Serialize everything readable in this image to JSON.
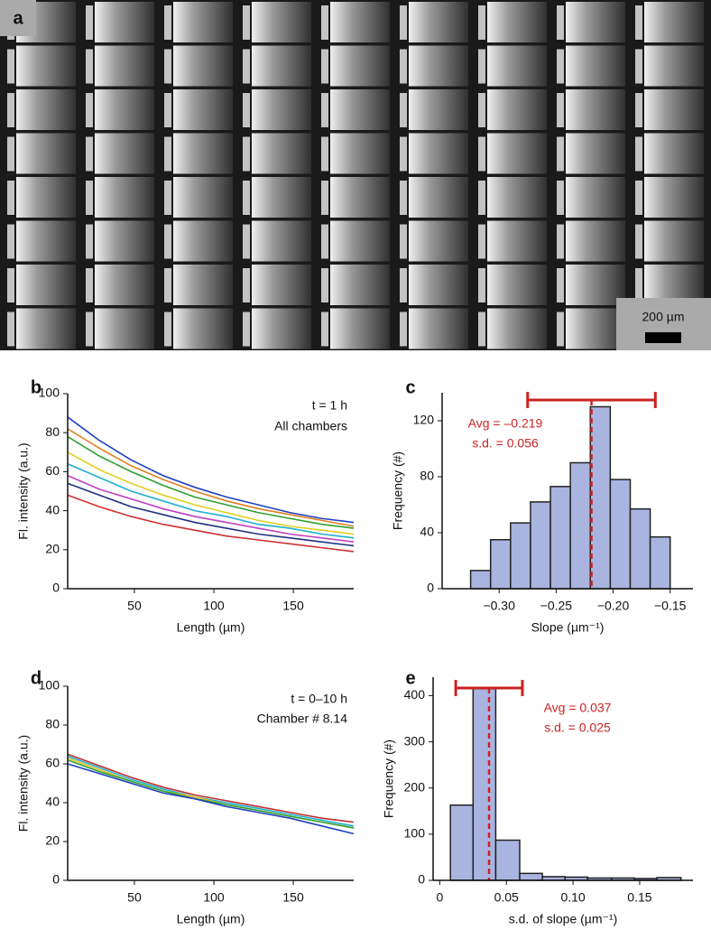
{
  "image": {
    "panel_label": "a",
    "scale_bar": "200 µm"
  },
  "chart_data": [
    {
      "type": "line",
      "panel_label": "b",
      "xlabel": "Length (µm)",
      "ylabel": "Fl. intensity (a.u.)",
      "annotations": [
        "t = 1 h",
        "All chambers"
      ],
      "x": [
        8,
        28,
        48,
        68,
        88,
        108,
        128,
        148,
        168,
        188
      ],
      "series": [
        {
          "color": "#2040c0",
          "values": [
            88,
            76,
            66,
            58,
            52,
            47,
            43,
            39,
            36,
            34
          ]
        },
        {
          "color": "#e08020",
          "values": [
            82,
            72,
            63,
            56,
            50,
            45,
            41,
            38,
            35,
            32
          ]
        },
        {
          "color": "#30a030",
          "values": [
            78,
            68,
            60,
            53,
            47,
            43,
            39,
            36,
            33,
            31
          ]
        },
        {
          "color": "#e0d020",
          "values": [
            70,
            61,
            54,
            48,
            43,
            39,
            35,
            32,
            30,
            28
          ]
        },
        {
          "color": "#20b0d0",
          "values": [
            64,
            57,
            50,
            45,
            40,
            37,
            33,
            31,
            28,
            26
          ]
        },
        {
          "color": "#c040c0",
          "values": [
            58,
            51,
            46,
            41,
            37,
            34,
            31,
            28,
            26,
            24
          ]
        },
        {
          "color": "#203080",
          "values": [
            54,
            48,
            42,
            38,
            34,
            31,
            28,
            26,
            24,
            22
          ]
        },
        {
          "color": "#d03030",
          "values": [
            48,
            42,
            37,
            33,
            30,
            27,
            25,
            23,
            21,
            19
          ]
        }
      ],
      "xlim": [
        8,
        188
      ],
      "xticks": [
        50,
        100,
        150
      ],
      "ylim": [
        0,
        100
      ],
      "yticks": [
        0,
        20,
        40,
        60,
        80,
        100
      ]
    },
    {
      "type": "histogram",
      "panel_label": "c",
      "xlabel": "Slope (µm⁻¹)",
      "ylabel": "Frequency (#)",
      "annotations": [
        "Avg = –0.219",
        "s.d. = 0.056"
      ],
      "mean": -0.219,
      "sd": 0.056,
      "color": "#aab4e0",
      "line_color": "#cc2222",
      "bins": [
        -0.325,
        -0.3075,
        -0.29,
        -0.2725,
        -0.255,
        -0.2375,
        -0.22,
        -0.2025,
        -0.185,
        -0.1675,
        -0.15
      ],
      "counts": [
        13,
        35,
        47,
        62,
        73,
        90,
        130,
        78,
        57,
        37
      ],
      "xlim": [
        -0.35,
        -0.13
      ],
      "xticks": [
        {
          "value": -0.3,
          "label": "−0.30"
        },
        {
          "value": -0.25,
          "label": "−0.25"
        },
        {
          "value": -0.2,
          "label": "−0.20"
        },
        {
          "value": -0.15,
          "label": "−0.15"
        }
      ],
      "ylim": [
        0,
        140
      ],
      "yticks": [
        0,
        40,
        80,
        120
      ]
    },
    {
      "type": "line",
      "panel_label": "d",
      "xlabel": "Length (µm)",
      "ylabel": "Fl. intensity (a.u.)",
      "annotations": [
        "t = 0–10 h",
        "Chamber # 8.14"
      ],
      "x": [
        8,
        28,
        48,
        68,
        88,
        108,
        128,
        148,
        168,
        188
      ],
      "series": [
        {
          "color": "#c03030",
          "values": [
            65,
            59,
            53,
            48,
            44,
            41,
            38,
            35,
            32,
            30
          ]
        },
        {
          "color": "#20b0d0",
          "values": [
            64,
            58,
            52,
            47,
            43,
            40,
            37,
            34,
            31,
            28
          ]
        },
        {
          "color": "#e0c020",
          "values": [
            63,
            57,
            51,
            46,
            43,
            39,
            36,
            33,
            30,
            27
          ]
        },
        {
          "color": "#30a030",
          "values": [
            62,
            56,
            51,
            46,
            42,
            39,
            36,
            33,
            30,
            27
          ]
        },
        {
          "color": "#2040c0",
          "values": [
            60,
            55,
            50,
            45,
            42,
            38,
            35,
            32,
            28,
            24
          ]
        }
      ],
      "xlim": [
        8,
        188
      ],
      "xticks": [
        50,
        100,
        150
      ],
      "ylim": [
        0,
        100
      ],
      "yticks": [
        0,
        20,
        40,
        60,
        80,
        100
      ]
    },
    {
      "type": "histogram",
      "panel_label": "e",
      "xlabel": "s.d. of slope (µm⁻¹)",
      "ylabel": "Frequency (#)",
      "annotations": [
        "Avg = 0.037",
        "s.d. = 0.025"
      ],
      "mean": 0.037,
      "sd": 0.025,
      "color": "#aab4e0",
      "line_color": "#cc2222",
      "bins": [
        0.008,
        0.025,
        0.042,
        0.06,
        0.077,
        0.094,
        0.111,
        0.129,
        0.146,
        0.163,
        0.181
      ],
      "counts": [
        163,
        415,
        87,
        15,
        8,
        7,
        5,
        5,
        4,
        6
      ],
      "xlim": [
        -0.005,
        0.19
      ],
      "xticks": [
        0,
        0.05,
        {
          "value": 0.1,
          "label": "0.10"
        },
        0.15
      ],
      "ylim": [
        0,
        440
      ],
      "yticks": [
        0,
        100,
        200,
        300,
        400
      ]
    }
  ]
}
